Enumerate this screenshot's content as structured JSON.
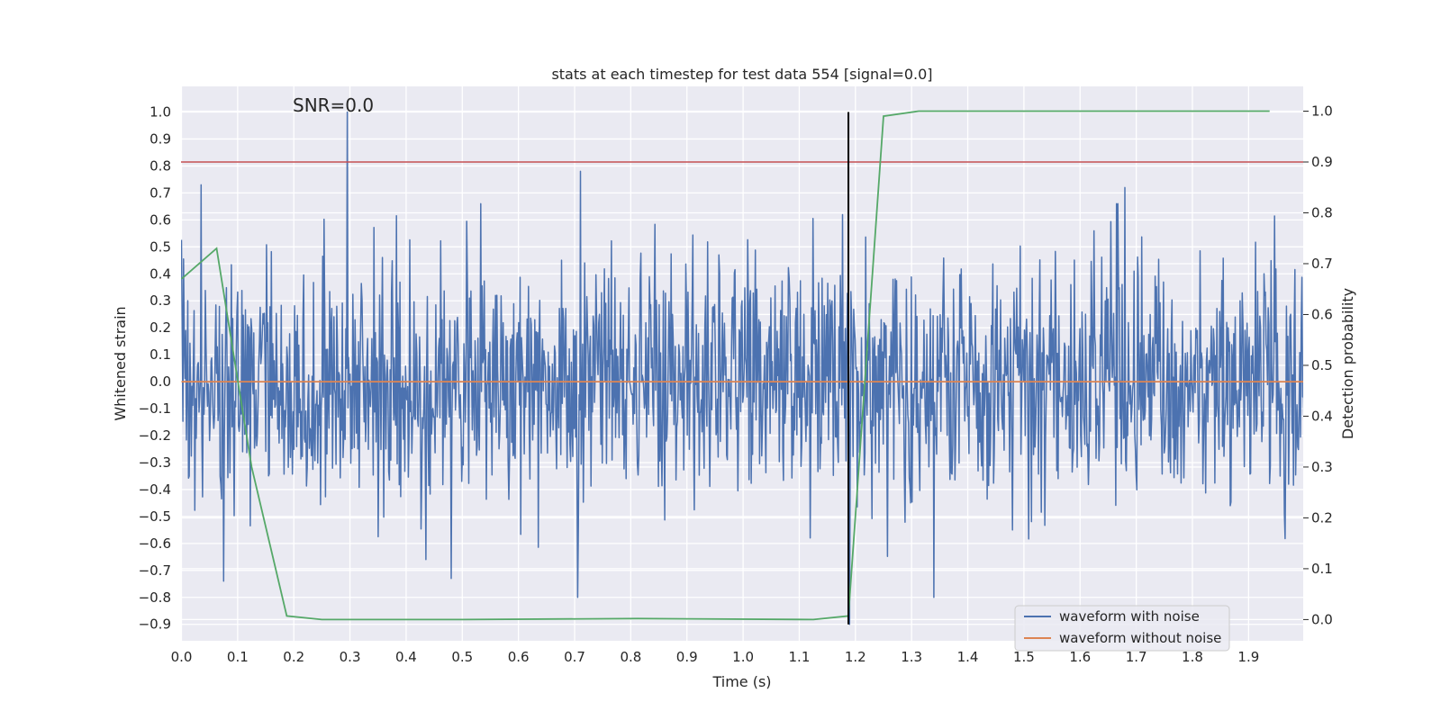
{
  "chart_data": {
    "type": "line",
    "title": "stats at each timestep for test data 554 [signal=0.0]",
    "xlabel": "Time (s)",
    "ylabel": "Whitened strain",
    "y2label": "Detection probability",
    "annotation": "SNR=0.0",
    "xlim": [
      0.0,
      2.0
    ],
    "ylim": [
      -1.0,
      1.05
    ],
    "y2lim": [
      -0.05,
      1.04
    ],
    "x_ticks": [
      "0.0",
      "0.1",
      "0.2",
      "0.3",
      "0.4",
      "0.5",
      "0.6",
      "0.7",
      "0.8",
      "0.9",
      "1.0",
      "1.1",
      "1.2",
      "1.3",
      "1.4",
      "1.5",
      "1.6",
      "1.7",
      "1.8",
      "1.9"
    ],
    "y_ticks": [
      "1.0",
      "0.9",
      "0.8",
      "0.7",
      "0.6",
      "0.5",
      "0.4",
      "0.3",
      "0.2",
      "0.1",
      "0.0",
      "−0.1",
      "−0.2",
      "−0.3",
      "−0.4",
      "−0.5",
      "−0.6",
      "−0.7",
      "−0.8",
      "−0.9"
    ],
    "y2_ticks": [
      "1.0",
      "0.9",
      "0.8",
      "0.7",
      "0.6",
      "0.5",
      "0.4",
      "0.3",
      "0.2",
      "0.1",
      "0.0"
    ],
    "grid": true,
    "legend_position": "lower-right",
    "legend": [
      "waveform with noise",
      "waveform without noise"
    ],
    "series": [
      {
        "name": "waveform with noise",
        "axis": "left",
        "color": "#4c72b0",
        "description": "whitened noise, approx. zero mean, peaks near +1.0 at t=0.295 and -0.9 near t=1.19",
        "peaks": [
          {
            "x": 0.035,
            "y": 0.73
          },
          {
            "x": 0.075,
            "y": -0.74
          },
          {
            "x": 0.295,
            "y": 1.0
          },
          {
            "x": 0.48,
            "y": -0.73
          },
          {
            "x": 0.71,
            "y": 0.78
          },
          {
            "x": 0.705,
            "y": -0.8
          },
          {
            "x": 1.19,
            "y": -0.9
          },
          {
            "x": 1.34,
            "y": -0.8
          },
          {
            "x": 1.68,
            "y": 0.72
          }
        ]
      },
      {
        "name": "waveform without noise",
        "axis": "left",
        "color": "#dd8452",
        "x": [
          0.0,
          2.0
        ],
        "y": [
          0.0,
          0.0
        ]
      },
      {
        "name": "detection probability",
        "axis": "right",
        "color": "#55a868",
        "x": [
          0.0,
          0.0625,
          0.125,
          0.1875,
          0.25,
          0.5,
          0.8125,
          1.125,
          1.1875,
          1.25,
          1.3125,
          1.9375
        ],
        "y": [
          0.67,
          0.73,
          0.3,
          0.007,
          0.0,
          0.0,
          0.002,
          0.0,
          0.007,
          0.99,
          1.0,
          1.0
        ]
      }
    ],
    "threshold_line": {
      "axis": "right",
      "y": 0.9,
      "color": "#c44e52"
    },
    "vertical_marker": {
      "x": 1.1875,
      "y_from": -0.9,
      "y_to": 1.0,
      "color": "#000000"
    }
  }
}
